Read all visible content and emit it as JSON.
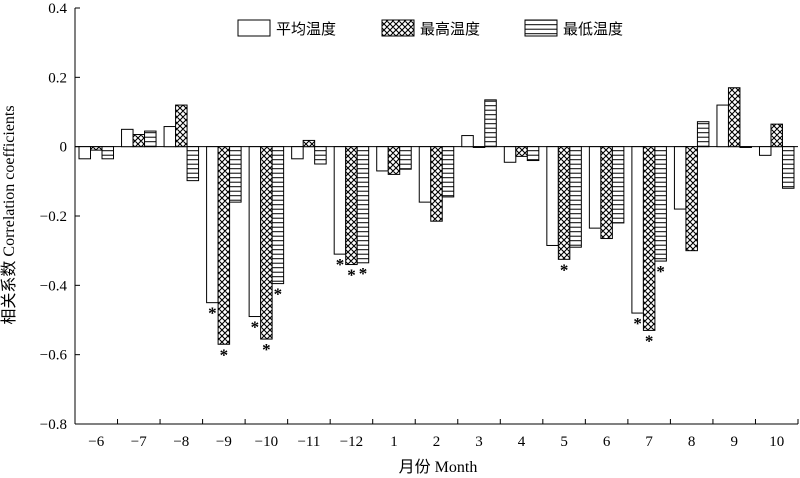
{
  "chart_data": {
    "type": "bar",
    "xlabel": "月份 Month",
    "ylabel": "相关系数 Correlation coefficients",
    "ylim": [
      -0.8,
      0.4
    ],
    "yticks": [
      0.4,
      0.2,
      0,
      -0.2,
      -0.4,
      -0.6,
      -0.8
    ],
    "ytick_labels": [
      "0.4",
      "0.2",
      "0",
      "−0.2",
      "−0.4",
      "−0.6",
      "−0.8"
    ],
    "grid": false,
    "legend_position": "top-right",
    "categories": [
      "−6",
      "−7",
      "−8",
      "−9",
      "−10",
      "−11",
      "−12",
      "1",
      "2",
      "3",
      "4",
      "5",
      "6",
      "7",
      "8",
      "9",
      "10"
    ],
    "series": [
      {
        "name": "平均温度",
        "pattern": "none",
        "values": [
          -0.035,
          0.05,
          0.058,
          -0.45,
          -0.49,
          -0.035,
          -0.31,
          -0.07,
          -0.16,
          0.032,
          -0.045,
          -0.285,
          -0.235,
          -0.48,
          -0.18,
          0.12,
          -0.025
        ],
        "significant": [
          false,
          false,
          false,
          true,
          true,
          false,
          true,
          false,
          false,
          false,
          false,
          false,
          false,
          true,
          false,
          false,
          false
        ]
      },
      {
        "name": "最高温度",
        "pattern": "crosshatch",
        "values": [
          -0.01,
          0.035,
          0.12,
          -0.57,
          -0.555,
          0.018,
          -0.34,
          -0.08,
          -0.215,
          0.0,
          -0.028,
          -0.325,
          -0.265,
          -0.53,
          -0.3,
          0.17,
          0.065
        ],
        "significant": [
          false,
          false,
          false,
          true,
          true,
          false,
          true,
          false,
          false,
          false,
          false,
          true,
          false,
          true,
          false,
          false,
          false
        ]
      },
      {
        "name": "最低温度",
        "pattern": "horizontal",
        "values": [
          -0.035,
          0.045,
          -0.098,
          -0.16,
          -0.395,
          -0.05,
          -0.335,
          -0.065,
          -0.145,
          0.135,
          -0.04,
          -0.29,
          -0.22,
          -0.33,
          0.072,
          0.0,
          -0.12
        ],
        "significant": [
          false,
          false,
          false,
          false,
          true,
          false,
          true,
          false,
          false,
          false,
          false,
          false,
          false,
          true,
          false,
          false,
          false
        ]
      }
    ],
    "annotation_symbol": "*"
  }
}
